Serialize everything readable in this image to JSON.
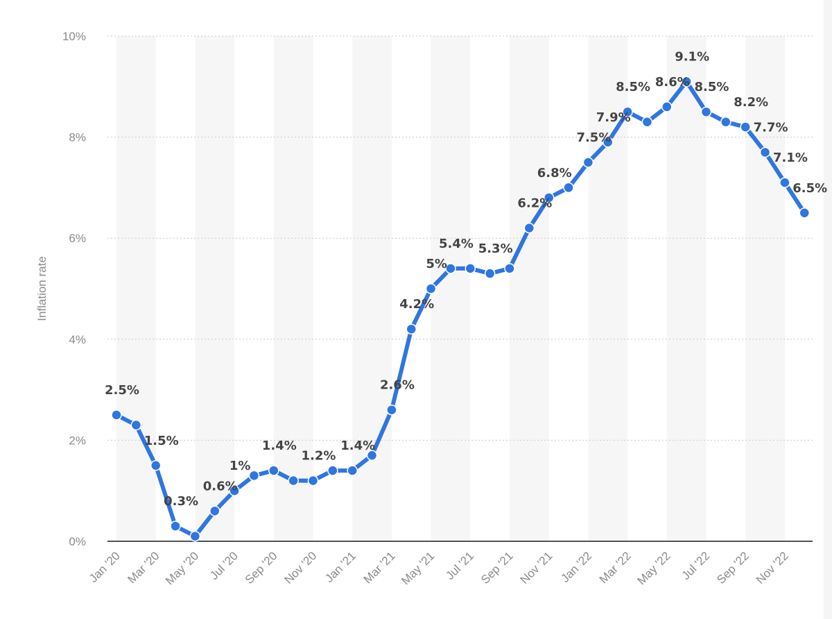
{
  "chart_data": {
    "type": "line",
    "title": "",
    "xlabel": "",
    "ylabel": "Inflation rate",
    "ylim": [
      0,
      10
    ],
    "y_ticks": [
      "0%",
      "2%",
      "4%",
      "6%",
      "8%",
      "10%"
    ],
    "grid": true,
    "categories": [
      "Jan '20",
      "Feb '20",
      "Mar '20",
      "Apr '20",
      "May '20",
      "Jun '20",
      "Jul '20",
      "Aug '20",
      "Sep '20",
      "Oct '20",
      "Nov '20",
      "Dec '20",
      "Jan '21",
      "Feb '21",
      "Mar '21",
      "Apr '21",
      "May '21",
      "Jun '21",
      "Jul '21",
      "Aug '21",
      "Sep '21",
      "Oct '21",
      "Nov '21",
      "Dec '21",
      "Jan '22",
      "Feb '22",
      "Mar '22",
      "Apr '22",
      "May '22",
      "Jun '22",
      "Jul '22",
      "Aug '22",
      "Sep '22",
      "Oct '22",
      "Nov '22",
      "Dec '22"
    ],
    "x_tick_labels": [
      "Jan '20",
      "Mar '20",
      "May '20",
      "Jul '20",
      "Sep '20",
      "Nov '20",
      "Jan '21",
      "Mar '21",
      "May '21",
      "Jul '21",
      "Sep '21",
      "Nov '21",
      "Jan '22",
      "Mar '22",
      "May '22",
      "Jul '22",
      "Sep '22",
      "Nov '22"
    ],
    "series": [
      {
        "values": [
          2.5,
          2.3,
          1.5,
          0.3,
          0.1,
          0.6,
          1.0,
          1.3,
          1.4,
          1.2,
          1.2,
          1.4,
          1.4,
          1.7,
          2.6,
          4.2,
          5.0,
          5.4,
          5.4,
          5.3,
          5.4,
          6.2,
          6.8,
          7.0,
          7.5,
          7.9,
          8.5,
          8.3,
          8.6,
          9.1,
          8.5,
          8.3,
          8.2,
          7.7,
          7.1,
          6.5
        ],
        "labels": [
          "2.5%",
          "",
          "1.5%",
          "0.3%",
          "",
          "0.6%",
          "1%",
          "",
          "1.4%",
          "",
          "1.2%",
          "",
          "1.4%",
          "",
          "2.6%",
          "4.2%",
          "5%",
          "5.4%",
          "",
          "5.3%",
          "",
          "6.2%",
          "6.8%",
          "",
          "7.5%",
          "7.9%",
          "8.5%",
          "",
          "8.6%",
          "9.1%",
          "8.5%",
          "",
          "8.2%",
          "7.7%",
          "7.1%",
          "6.5%"
        ]
      }
    ],
    "line_color": "#2f76e0"
  }
}
